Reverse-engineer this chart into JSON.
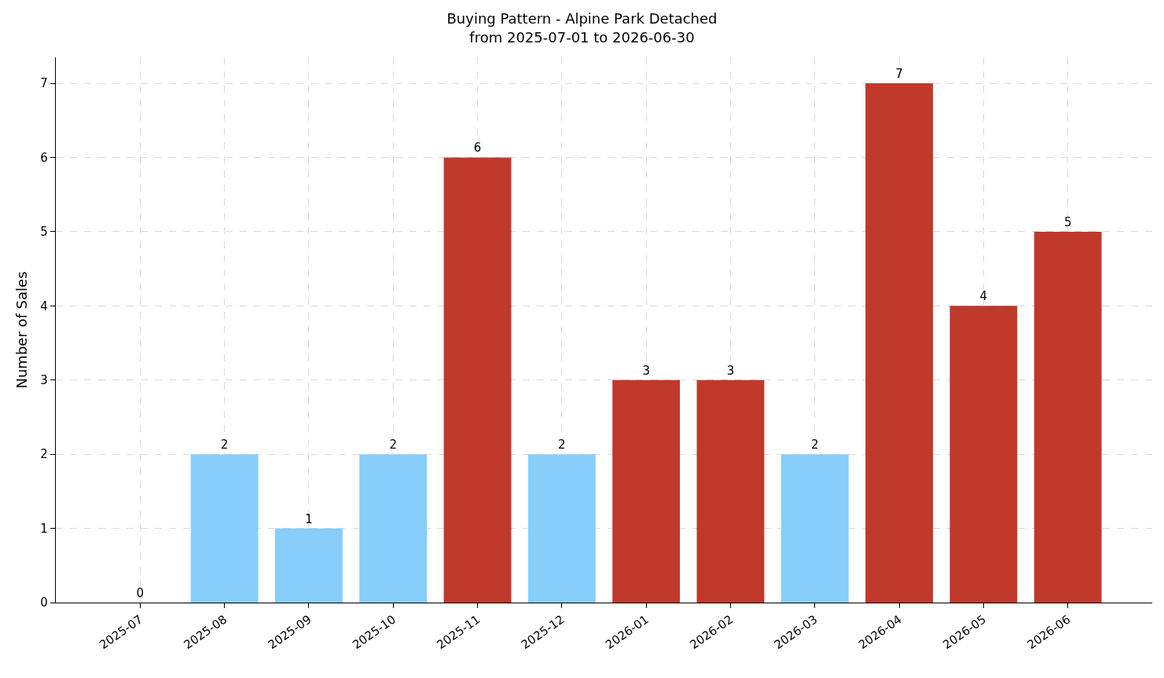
{
  "chart_data": {
    "type": "bar",
    "title": "Buying Pattern - Alpine Park Detached",
    "subtitle": "from 2025-07-01 to 2026-06-30",
    "ylabel": "Number of Sales",
    "categories": [
      "2025-07",
      "2025-08",
      "2025-09",
      "2025-10",
      "2025-11",
      "2025-12",
      "2026-01",
      "2026-02",
      "2026-03",
      "2026-04",
      "2026-05",
      "2026-06"
    ],
    "values": [
      0,
      2,
      1,
      2,
      6,
      2,
      3,
      3,
      2,
      7,
      4,
      5
    ],
    "colors": [
      "#87cefa",
      "#87cefa",
      "#87cefa",
      "#87cefa",
      "#c0392b",
      "#87cefa",
      "#c0392b",
      "#c0392b",
      "#87cefa",
      "#c0392b",
      "#c0392b",
      "#c0392b"
    ],
    "ylim": [
      0,
      7.35
    ],
    "yticks": [
      0,
      1,
      2,
      3,
      4,
      5,
      6,
      7
    ],
    "grid": true,
    "data_labels": true
  }
}
